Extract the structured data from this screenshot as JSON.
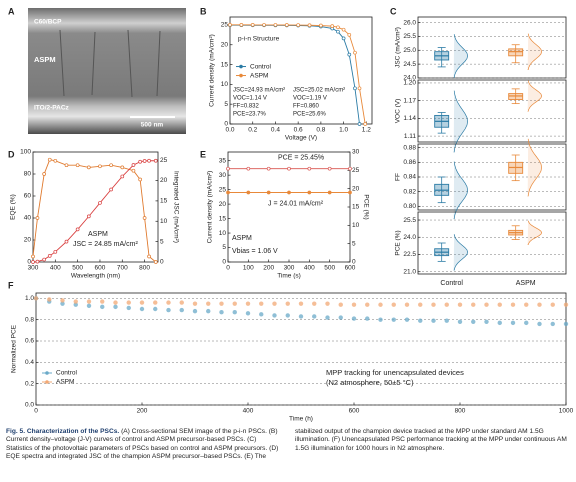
{
  "panel_a": {
    "panel": "A",
    "layers": [
      "C60/BCP",
      "ASPM",
      "ITO/2-PACz"
    ],
    "scale_bar": "500 nm"
  },
  "chart_data": [
    {
      "panel": "B",
      "type": "line",
      "annotation": "p-i-n Structure",
      "xlabel": "Voltage (V)",
      "ylabel": "Current density (mA/cm²)",
      "x": [
        0,
        0.1,
        0.2,
        0.3,
        0.4,
        0.5,
        0.6,
        0.7,
        0.8,
        0.9,
        0.95,
        1.0,
        1.05,
        1.1,
        1.14,
        1.19
      ],
      "series": [
        {
          "name": "Control",
          "color": "#2b7ba5",
          "values": [
            24.93,
            24.93,
            24.92,
            24.91,
            24.9,
            24.88,
            24.85,
            24.78,
            24.6,
            24.1,
            23.3,
            21.6,
            17.5,
            9,
            0,
            null
          ],
          "stats": [
            "JSC=24.93 mA/cm²",
            "VOC=1.14 V",
            "FF=0.832",
            "PCE=23.7%"
          ]
        },
        {
          "name": "ASPM",
          "color": "#e8893a",
          "values": [
            25.02,
            25.02,
            25.01,
            25.0,
            25.0,
            24.98,
            24.96,
            24.92,
            24.85,
            24.7,
            24.4,
            23.8,
            22.5,
            18,
            9,
            0
          ],
          "stats": [
            "JSC=25.02 mA/cm²",
            "VOC=1.19 V",
            "FF=0.860",
            "PCE=25.6%"
          ]
        }
      ],
      "xlim": [
        0,
        1.25
      ],
      "xticks": [
        {
          "value": 0,
          "label": "0.0"
        },
        0.2,
        0.4,
        0.6,
        0.8,
        {
          "value": 1,
          "label": "1.0"
        },
        1.2
      ],
      "ylim": [
        0,
        27
      ],
      "yticks": [
        0,
        5,
        10,
        15,
        20,
        25
      ],
      "legend": "center-left"
    },
    {
      "panel": "C",
      "type": "box",
      "ylabel": "JSC (mA/cm²)",
      "colors": [
        "#2b7ba5",
        "#e8893a"
      ],
      "grid": true,
      "boxes": [
        {
          "min": 24.4,
          "q1": 24.65,
          "median": 24.8,
          "q3": 24.95,
          "max": 25.1
        },
        {
          "min": 24.55,
          "q1": 24.8,
          "median": 24.95,
          "q3": 25.05,
          "max": 25.2
        }
      ],
      "ylim": [
        24.0,
        26.2
      ],
      "yticks": [
        {
          "value": 24,
          "label": "24.0"
        },
        24.5,
        {
          "value": 25,
          "label": "25.0"
        },
        25.5,
        {
          "value": 26,
          "label": "26.0"
        }
      ]
    },
    {
      "type": "box",
      "ylabel": "VOC (V)",
      "colors": [
        "#2b7ba5",
        "#e8893a"
      ],
      "grid": true,
      "boxes": [
        {
          "min": 1.115,
          "q1": 1.125,
          "median": 1.135,
          "q3": 1.145,
          "max": 1.15
        },
        {
          "min": 1.165,
          "q1": 1.172,
          "median": 1.178,
          "q3": 1.182,
          "max": 1.19
        }
      ],
      "ylim": [
        1.1,
        1.205
      ],
      "yticks": [
        1.11,
        1.14,
        1.17,
        {
          "value": 1.2,
          "label": "1.20"
        }
      ]
    },
    {
      "type": "box",
      "ylabel": "FF",
      "colors": [
        "#2b7ba5",
        "#e8893a"
      ],
      "grid": true,
      "boxes": [
        {
          "min": 0.805,
          "q1": 0.815,
          "median": 0.822,
          "q3": 0.83,
          "max": 0.84
        },
        {
          "min": 0.835,
          "q1": 0.845,
          "median": 0.853,
          "q3": 0.86,
          "max": 0.87
        }
      ],
      "ylim": [
        0.795,
        0.885
      ],
      "yticks": [
        {
          "value": 0.8,
          "label": "0.80"
        },
        0.82,
        0.84,
        0.86,
        0.88
      ]
    },
    {
      "type": "box",
      "ylabel": "PCE (%)",
      "colors": [
        "#2b7ba5",
        "#e8893a"
      ],
      "grid": true,
      "categories": [
        "Control",
        "ASPM"
      ],
      "boxes": [
        {
          "min": 21.9,
          "q1": 22.4,
          "median": 22.7,
          "q3": 23.0,
          "max": 23.5
        },
        {
          "min": 23.8,
          "q1": 24.2,
          "median": 24.4,
          "q3": 24.6,
          "max": 25.0
        }
      ],
      "ylim": [
        20.8,
        26.2
      ],
      "yticks": [
        {
          "value": 21,
          "label": "21.0"
        },
        22.5,
        {
          "value": 24,
          "label": "24.0"
        },
        25.5
      ]
    },
    {
      "panel": "D",
      "type": "line",
      "annotations": [
        "ASPM",
        "JSC = 24.85 mA/cm²"
      ],
      "xlabel": "Wavelength (nm)",
      "ylabel": "EQE (%)",
      "y2label": "Integrated JSC (mA/cm²)",
      "x": [
        300,
        320,
        350,
        375,
        400,
        450,
        500,
        550,
        600,
        650,
        700,
        750,
        780,
        800,
        820,
        850
      ],
      "series": [
        {
          "color": "#e07a2e",
          "values": [
            5,
            40,
            80,
            93,
            92,
            88,
            88,
            86,
            87,
            88,
            86,
            83,
            75,
            40,
            5,
            0
          ]
        },
        {
          "color": "#d94040",
          "axis": "y2",
          "values": [
            0,
            0.1,
            0.6,
            1.5,
            2.5,
            5,
            8,
            11.2,
            14.5,
            17.8,
            21,
            23.8,
            24.6,
            24.8,
            24.85,
            24.85
          ]
        }
      ],
      "xlim": [
        300,
        860
      ],
      "xticks": [
        300,
        400,
        500,
        600,
        700,
        800
      ],
      "ylim": [
        0,
        100
      ],
      "yticks": [
        0,
        20,
        40,
        60,
        80,
        100
      ],
      "y2lim": [
        0,
        27
      ],
      "y2ticks": [
        0,
        5,
        10,
        15,
        20,
        25
      ]
    },
    {
      "panel": "E",
      "type": "line",
      "annotations": [
        "PCE = 25.45%",
        "J = 24.01 mA/cm²",
        "ASPM",
        "Vbias = 1.06 V"
      ],
      "xlabel": "Time (s)",
      "ylabel": "Current density (mA/cm²)",
      "y2label": "PCE (%)",
      "x": [
        0,
        100,
        200,
        300,
        400,
        500,
        600
      ],
      "series": [
        {
          "color": "#e8893a",
          "values": [
            24.01,
            24.01,
            24.01,
            24.01,
            24.01,
            24.01,
            24.01
          ]
        },
        {
          "color": "#d9534f",
          "axis": "y2",
          "values": [
            25.45,
            25.45,
            25.45,
            25.45,
            25.45,
            25.45,
            25.45
          ]
        }
      ],
      "xlim": [
        0,
        600
      ],
      "xticks": [
        0,
        100,
        200,
        300,
        400,
        500,
        600
      ],
      "ylim": [
        0,
        38
      ],
      "yticks": [
        0,
        5,
        10,
        15,
        20,
        25,
        30,
        35
      ],
      "y2lim": [
        0,
        30
      ],
      "y2ticks": [
        0,
        5,
        10,
        15,
        20,
        25,
        30
      ]
    },
    {
      "panel": "F",
      "type": "scatter",
      "annotations": [
        "MPP tracking for unencapsulated devices",
        "(N2 atmosphere, 50±5 °C)"
      ],
      "xlabel": "Time (h)",
      "ylabel": "Normalized PCE",
      "x": [
        0,
        25,
        50,
        75,
        100,
        125,
        150,
        175,
        200,
        225,
        250,
        275,
        300,
        325,
        350,
        375,
        400,
        425,
        450,
        475,
        500,
        525,
        550,
        575,
        600,
        625,
        650,
        675,
        700,
        725,
        750,
        775,
        800,
        825,
        850,
        875,
        900,
        925,
        950,
        975,
        1000
      ],
      "series": [
        {
          "name": "Control",
          "color": "#6aaac8",
          "values": [
            1.0,
            0.97,
            0.95,
            0.94,
            0.93,
            0.92,
            0.92,
            0.91,
            0.9,
            0.9,
            0.89,
            0.89,
            0.88,
            0.88,
            0.87,
            0.87,
            0.86,
            0.85,
            0.84,
            0.84,
            0.83,
            0.83,
            0.82,
            0.82,
            0.81,
            0.81,
            0.8,
            0.8,
            0.8,
            0.79,
            0.79,
            0.79,
            0.78,
            0.78,
            0.78,
            0.77,
            0.77,
            0.77,
            0.76,
            0.76,
            0.76
          ]
        },
        {
          "name": "ASPM",
          "color": "#f2a874",
          "values": [
            1.0,
            0.99,
            0.98,
            0.97,
            0.97,
            0.97,
            0.96,
            0.96,
            0.96,
            0.96,
            0.96,
            0.96,
            0.95,
            0.95,
            0.95,
            0.95,
            0.95,
            0.95,
            0.95,
            0.95,
            0.95,
            0.95,
            0.95,
            0.94,
            0.94,
            0.94,
            0.94,
            0.94,
            0.94,
            0.94,
            0.94,
            0.94,
            0.94,
            0.94,
            0.94,
            0.94,
            0.94,
            0.94,
            0.94,
            0.94,
            0.94
          ]
        }
      ],
      "xlim": [
        0,
        1000
      ],
      "xticks": [
        0,
        200,
        400,
        600,
        800,
        1000
      ],
      "ylim": [
        0,
        1.05
      ],
      "yticks": [
        {
          "value": 0,
          "label": "0.0"
        },
        0.2,
        0.4,
        0.6,
        0.8,
        {
          "value": 1,
          "label": "1.0"
        }
      ],
      "grid": true,
      "legend": "lower-left"
    }
  ],
  "caption": {
    "label": "Fig. 5. Characterization of the PSCs.",
    "text": "(A) Cross-sectional SEM image of the p-i-n PSCs. (B) Current density–voltage (J-V) curves of control and ASPM precursor-based PSCs. (C) Statistics of the photovoltaic parameters of PSCs based on control and ASPM precursors. (D) EQE spectra and integrated JSC of the champion ASPM precursor–based PSCs. (E) The stabilized output of the champion device tracked at the MPP under standard AM 1.5G illumination. (F) Unencapsulated PSC performance tracking at the MPP under continuous AM 1.5G illumination for 1000 hours in N2 atmosphere."
  }
}
